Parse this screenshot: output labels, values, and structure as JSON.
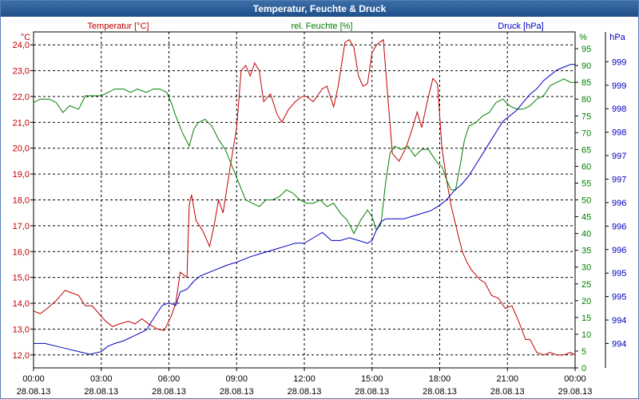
{
  "window": {
    "title": "Temperatur, Feuchte & Druck"
  },
  "colors": {
    "temperature": "#c00000",
    "humidity": "#008000",
    "pressure": "#0000c0",
    "axis": "#000000",
    "grid": "#000000"
  },
  "chart_data": {
    "type": "line",
    "title": "Temperatur, Feuchte & Druck",
    "x_unit": "hours since 28.08.13 00:00",
    "x_range": [
      0,
      24
    ],
    "x_ticks": [
      {
        "time": "00:00",
        "date": "28.08.13"
      },
      {
        "time": "03:00",
        "date": "28.08.13"
      },
      {
        "time": "06:00",
        "date": "28.08.13"
      },
      {
        "time": "09:00",
        "date": "28.08.13"
      },
      {
        "time": "12:00",
        "date": "28.08.13"
      },
      {
        "time": "15:00",
        "date": "28.08.13"
      },
      {
        "time": "18:00",
        "date": "28.08.13"
      },
      {
        "time": "21:00",
        "date": "28.08.13"
      },
      {
        "time": "00:00",
        "date": "29.08.13"
      }
    ],
    "axes": {
      "temperature": {
        "label": "Temperatur [°C]",
        "unit": "°C",
        "range": [
          11.5,
          24.5
        ],
        "ticks": [
          "12,0",
          "13,0",
          "14,0",
          "15,0",
          "16,0",
          "17,0",
          "18,0",
          "19,0",
          "20,0",
          "21,0",
          "22,0",
          "23,0",
          "24,0"
        ]
      },
      "humidity": {
        "label": "rel. Feuchte [%]",
        "unit": "%",
        "range": [
          0,
          100
        ],
        "ticks": [
          "0",
          "5",
          "10",
          "15",
          "20",
          "25",
          "30",
          "35",
          "40",
          "45",
          "50",
          "55",
          "60",
          "65",
          "70",
          "75",
          "80",
          "85",
          "90",
          "95"
        ]
      },
      "pressure": {
        "label": "Druck [hPa]",
        "unit": "hPa",
        "ticks": [
          "994",
          "994",
          "995",
          "995",
          "996",
          "996",
          "996",
          "997",
          "997",
          "998",
          "998",
          "999",
          "999"
        ]
      }
    },
    "series": [
      {
        "name": "Temperatur",
        "axis": "temperature",
        "x": [
          0,
          0.3,
          0.6,
          1,
          1.4,
          1.7,
          2,
          2.3,
          2.6,
          2.9,
          3.2,
          3.5,
          3.8,
          4.2,
          4.5,
          4.8,
          5.1,
          5.5,
          5.8,
          6.1,
          6.3,
          6.5,
          6.8,
          6.9,
          7,
          7.2,
          7.5,
          7.8,
          8,
          8.2,
          8.4,
          8.7,
          9,
          9.2,
          9.4,
          9.6,
          9.8,
          10,
          10.2,
          10.5,
          10.8,
          11,
          11.3,
          11.6,
          11.9,
          12.1,
          12.4,
          12.8,
          13,
          13.3,
          13.5,
          13.8,
          14,
          14.2,
          14.4,
          14.6,
          14.8,
          15,
          15.2,
          15.5,
          15.7,
          15.9,
          16.2,
          16.5,
          16.8,
          17,
          17.2,
          17.5,
          17.7,
          17.9,
          18.1,
          18.3,
          18.5,
          18.8,
          19,
          19.2,
          19.4,
          19.6,
          19.8,
          20,
          20.3,
          20.6,
          20.9,
          21.2,
          21.5,
          21.8,
          22,
          22.3,
          22.6,
          22.9,
          23.2,
          23.5,
          23.8,
          24
        ],
        "values": [
          13.7,
          13.6,
          13.8,
          14.1,
          14.5,
          14.4,
          14.3,
          13.9,
          13.9,
          13.6,
          13.3,
          13.1,
          13.2,
          13.3,
          13.2,
          13.4,
          13.2,
          13.0,
          12.95,
          13.5,
          14.0,
          15.2,
          15.0,
          17.8,
          18.2,
          17.2,
          16.8,
          16.2,
          17.0,
          18.0,
          17.5,
          19.2,
          20.8,
          23.0,
          23.2,
          22.8,
          23.3,
          23.0,
          21.8,
          22.1,
          21.3,
          21.0,
          21.5,
          21.8,
          22.0,
          22.0,
          21.8,
          22.3,
          22.4,
          21.6,
          22.4,
          24.1,
          24.2,
          23.9,
          22.8,
          22.4,
          22.5,
          23.7,
          24.0,
          24.2,
          22.0,
          19.8,
          19.5,
          20.0,
          20.8,
          21.4,
          20.8,
          22.0,
          22.7,
          22.5,
          20.0,
          18.8,
          17.8,
          16.7,
          16.0,
          15.6,
          15.3,
          15.1,
          14.9,
          14.8,
          14.3,
          14.2,
          13.8,
          13.9,
          13.3,
          12.6,
          12.6,
          12.1,
          12.0,
          12.1,
          12.0,
          12.0,
          12.1,
          12.0
        ]
      },
      {
        "name": "rel. Feuchte",
        "axis": "humidity",
        "x": [
          0,
          0.3,
          0.7,
          1,
          1.3,
          1.6,
          2,
          2.3,
          2.7,
          3,
          3.3,
          3.6,
          4,
          4.3,
          4.6,
          5,
          5.3,
          5.6,
          5.9,
          6.1,
          6.3,
          6.6,
          6.9,
          7.1,
          7.3,
          7.6,
          7.9,
          8.2,
          8.5,
          8.8,
          9.1,
          9.4,
          9.7,
          10,
          10.3,
          10.6,
          10.9,
          11.2,
          11.5,
          11.8,
          12.1,
          12.4,
          12.7,
          13,
          13.3,
          13.6,
          13.9,
          14.2,
          14.5,
          14.8,
          15,
          15.2,
          15.4,
          15.6,
          15.8,
          16,
          16.3,
          16.6,
          16.9,
          17.2,
          17.5,
          17.7,
          17.9,
          18.1,
          18.3,
          18.5,
          18.7,
          18.9,
          19.1,
          19.3,
          19.6,
          19.9,
          20.2,
          20.5,
          20.8,
          21.1,
          21.4,
          21.7,
          22,
          22.3,
          22.6,
          22.9,
          23.2,
          23.5,
          23.8,
          24
        ],
        "values": [
          79,
          80,
          80,
          79,
          76,
          78,
          77,
          81,
          81,
          81,
          82,
          83,
          83,
          82,
          83,
          82,
          83,
          83,
          82,
          79,
          75,
          70,
          66,
          71,
          73,
          74,
          72,
          68,
          65,
          60,
          55,
          50,
          49,
          48,
          50,
          50,
          51,
          53,
          52,
          50,
          49,
          49,
          50,
          48,
          49,
          46,
          44,
          40,
          44,
          47,
          45,
          41,
          43,
          55,
          64,
          66,
          65,
          66,
          63,
          65,
          65,
          63,
          61,
          60,
          56,
          53,
          53,
          60,
          68,
          72,
          73,
          75,
          76,
          79,
          80,
          78,
          77,
          77,
          78,
          80,
          81,
          84,
          85,
          86,
          85,
          85
        ]
      },
      {
        "name": "Druck",
        "axis": "pressure",
        "x": [
          0,
          0.5,
          1,
          1.5,
          2,
          2.5,
          3,
          3.3,
          3.6,
          4,
          4.5,
          5,
          5.3,
          5.7,
          6,
          6.3,
          6.5,
          6.8,
          7.1,
          7.4,
          7.7,
          8,
          8.3,
          8.6,
          9,
          9.3,
          9.6,
          10,
          10.4,
          10.8,
          11.2,
          11.6,
          12,
          12.4,
          12.8,
          13.2,
          13.6,
          14,
          14.4,
          14.8,
          15,
          15.2,
          15.4,
          15.6,
          16,
          16.4,
          16.8,
          17.2,
          17.6,
          18,
          18.3,
          18.6,
          19,
          19.3,
          19.6,
          19.9,
          20.2,
          20.5,
          20.8,
          21.1,
          21.4,
          21.7,
          22,
          22.3,
          22.6,
          22.9,
          23.2,
          23.5,
          23.8,
          24
        ],
        "values": [
          993.85,
          993.85,
          993.8,
          993.75,
          993.7,
          993.65,
          993.7,
          993.8,
          993.85,
          993.9,
          994.0,
          994.1,
          994.3,
          994.55,
          994.6,
          994.55,
          994.8,
          994.85,
          995.0,
          995.1,
          995.15,
          995.2,
          995.25,
          995.3,
          995.35,
          995.4,
          995.45,
          995.5,
          995.55,
          995.6,
          995.65,
          995.7,
          995.7,
          995.8,
          995.9,
          995.75,
          995.75,
          995.8,
          995.75,
          995.7,
          995.75,
          995.95,
          996.1,
          996.15,
          996.15,
          996.15,
          996.2,
          996.25,
          996.3,
          996.4,
          996.5,
          996.65,
          996.8,
          996.95,
          997.15,
          997.35,
          997.55,
          997.75,
          997.95,
          998.05,
          998.15,
          998.3,
          998.45,
          998.55,
          998.7,
          998.8,
          998.9,
          998.95,
          999.0,
          999.0
        ]
      }
    ]
  }
}
